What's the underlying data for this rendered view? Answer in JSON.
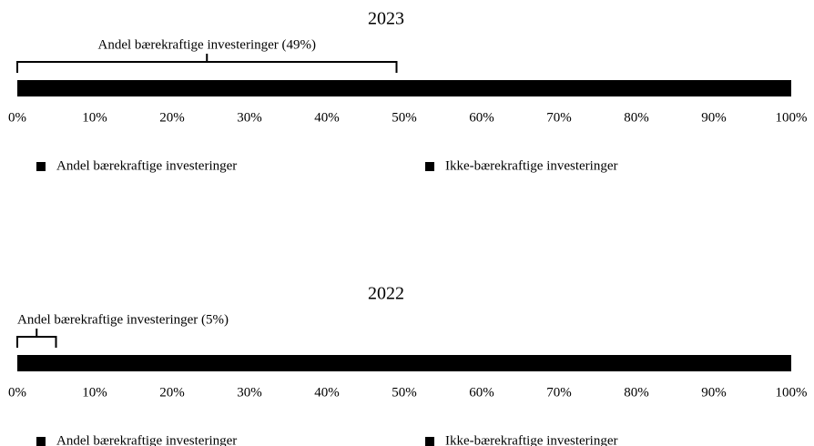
{
  "chart_data": [
    {
      "type": "stacked-bar",
      "orientation": "horizontal",
      "title": "2023",
      "annotation": "Andel bærekraftige investeringer (49%)",
      "categories": [
        null
      ],
      "series": [
        {
          "name": "Andel bærekraftige investeringer",
          "color": "#000000",
          "values": [
            49
          ]
        },
        {
          "name": "Ikke-bærekraftige investeringer",
          "color": "#000000",
          "values": [
            51
          ]
        }
      ],
      "xlim": [
        0,
        100
      ],
      "xticks": [
        {
          "value": 0,
          "label": "0%"
        },
        {
          "value": 10,
          "label": "10%"
        },
        {
          "value": 20,
          "label": "20%"
        },
        {
          "value": 30,
          "label": "30%"
        },
        {
          "value": 40,
          "label": "40%"
        },
        {
          "value": 50,
          "label": "50%"
        },
        {
          "value": 60,
          "label": "60%"
        },
        {
          "value": 70,
          "label": "70%"
        },
        {
          "value": 80,
          "label": "80%"
        },
        {
          "value": 90,
          "label": "90%"
        },
        {
          "value": 100,
          "label": "100%"
        }
      ],
      "grid": false,
      "legend": "bottom"
    },
    {
      "type": "stacked-bar",
      "orientation": "horizontal",
      "title": "2022",
      "annotation": "Andel bærekraftige investeringer (5%)",
      "categories": [
        null
      ],
      "series": [
        {
          "name": "Andel bærekraftige investeringer",
          "color": "#000000",
          "values": [
            5
          ]
        },
        {
          "name": "Ikke-bærekraftige investeringer",
          "color": "#000000",
          "values": [
            95
          ]
        }
      ],
      "xlim": [
        0,
        100
      ],
      "xticks": [
        {
          "value": 0,
          "label": "0%"
        },
        {
          "value": 10,
          "label": "10%"
        },
        {
          "value": 20,
          "label": "20%"
        },
        {
          "value": 30,
          "label": "30%"
        },
        {
          "value": 40,
          "label": "40%"
        },
        {
          "value": 50,
          "label": "50%"
        },
        {
          "value": 60,
          "label": "60%"
        },
        {
          "value": 70,
          "label": "70%"
        },
        {
          "value": 80,
          "label": "80%"
        },
        {
          "value": 90,
          "label": "90%"
        },
        {
          "value": 100,
          "label": "100%"
        }
      ],
      "grid": false,
      "legend": "bottom"
    }
  ]
}
